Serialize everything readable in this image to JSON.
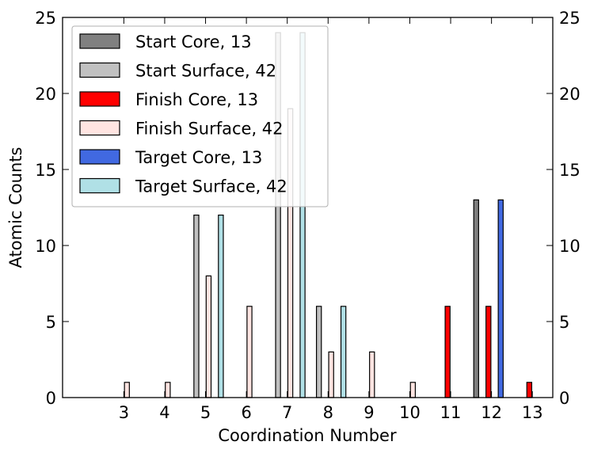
{
  "chart_data": {
    "type": "bar",
    "title": "",
    "xlabel": "Coordination Number",
    "ylabel": "Atomic Counts",
    "ylim": [
      0,
      25
    ],
    "y_ticks": [
      "0",
      "5",
      "10",
      "15",
      "20",
      "25"
    ],
    "y_tick_values": [
      0,
      5,
      10,
      15,
      20,
      25
    ],
    "right_axis_ticks": true,
    "grid": false,
    "legend_position": "top-left",
    "categories": [
      "3",
      "4",
      "5",
      "6",
      "7",
      "8",
      "9",
      "10",
      "11",
      "12",
      "13"
    ],
    "x": [
      3,
      4,
      5,
      6,
      7,
      8,
      9,
      10,
      11,
      12,
      13
    ],
    "series": [
      {
        "name": "Start Core, 13",
        "color": "#808080",
        "values": [
          0,
          0,
          0,
          0,
          0,
          0,
          0,
          0,
          0,
          13,
          0
        ]
      },
      {
        "name": "Start Surface, 42",
        "color": "#c0c0c0",
        "values": [
          0,
          0,
          12,
          0,
          24,
          6,
          0,
          0,
          0,
          0,
          0
        ]
      },
      {
        "name": "Finish Core, 13",
        "color": "#ff0000",
        "values": [
          0,
          0,
          0,
          0,
          0,
          0,
          0,
          0,
          6,
          6,
          1
        ]
      },
      {
        "name": "Finish Surface, 42",
        "color": "#ffe4e1",
        "values": [
          1,
          1,
          8,
          6,
          19,
          3,
          3,
          1,
          0,
          0,
          0
        ]
      },
      {
        "name": "Target Core, 13",
        "color": "#4169e1",
        "values": [
          0,
          0,
          0,
          0,
          0,
          0,
          0,
          0,
          0,
          13,
          0
        ]
      },
      {
        "name": "Target Surface, 42",
        "color": "#b0e0e6",
        "values": [
          0,
          0,
          12,
          0,
          24,
          6,
          0,
          0,
          0,
          0,
          0
        ]
      }
    ]
  }
}
